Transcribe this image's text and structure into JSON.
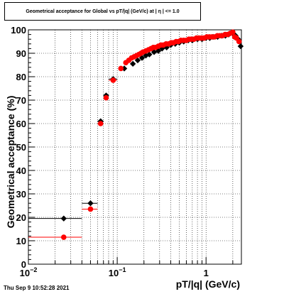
{
  "title": "Geometrical acceptance for Global vs pT/|q| (GeV/c) at |  η | <= 1.0",
  "timestamp": "Thu Sep  9 10:52:28 2021",
  "chart_data": {
    "type": "scatter",
    "xlabel": "pT/|q| (GeV/c)",
    "ylabel": "Geometrical acceptance (%)",
    "xscale": "log",
    "xlim": [
      0.01,
      2.5
    ],
    "ylim": [
      0,
      100
    ],
    "grid": true,
    "x_ticks": [
      {
        "value": 0.01,
        "base": "10",
        "exp": "−2"
      },
      {
        "value": 0.1,
        "base": "10",
        "exp": "−1"
      },
      {
        "value": 1,
        "base": "1",
        "exp": ""
      }
    ],
    "y_ticks": [
      0,
      10,
      20,
      30,
      40,
      50,
      60,
      70,
      80,
      90,
      100
    ],
    "series": [
      {
        "color": "#000000",
        "marker": "diamond",
        "points": [
          {
            "x": 0.025,
            "y": 19.5,
            "xerr": [
              0.01,
              0.04
            ],
            "yerr": 0.3
          },
          {
            "x": 0.05,
            "y": 26,
            "xerr": [
              0.04,
              0.06
            ],
            "yerr": 0.6
          },
          {
            "x": 0.065,
            "y": 61,
            "xerr": [
              0.06,
              0.07
            ],
            "yerr": 1.0
          },
          {
            "x": 0.075,
            "y": 72,
            "xerr": [
              0.07,
              0.08
            ],
            "yerr": 1.0
          },
          {
            "x": 0.09,
            "y": 79,
            "xerr": [
              0.08,
              0.1
            ],
            "yerr": 0.5
          },
          {
            "x": 0.12,
            "y": 83.5
          },
          {
            "x": 0.15,
            "y": 85.5
          },
          {
            "x": 0.17,
            "y": 87
          },
          {
            "x": 0.19,
            "y": 88
          },
          {
            "x": 0.21,
            "y": 89
          },
          {
            "x": 0.23,
            "y": 89.5
          },
          {
            "x": 0.26,
            "y": 90.5
          },
          {
            "x": 0.29,
            "y": 91
          },
          {
            "x": 0.32,
            "y": 92
          },
          {
            "x": 0.36,
            "y": 92.5
          },
          {
            "x": 0.4,
            "y": 93.5
          },
          {
            "x": 0.45,
            "y": 94
          },
          {
            "x": 0.5,
            "y": 94.5
          },
          {
            "x": 0.56,
            "y": 95
          },
          {
            "x": 0.63,
            "y": 95.5
          },
          {
            "x": 0.7,
            "y": 95.5
          },
          {
            "x": 0.8,
            "y": 96
          },
          {
            "x": 0.9,
            "y": 96
          },
          {
            "x": 1.0,
            "y": 96.5
          },
          {
            "x": 1.1,
            "y": 96.5
          },
          {
            "x": 1.2,
            "y": 97
          },
          {
            "x": 1.35,
            "y": 97
          },
          {
            "x": 1.5,
            "y": 97.5
          },
          {
            "x": 1.65,
            "y": 97.5
          },
          {
            "x": 1.8,
            "y": 98
          },
          {
            "x": 2.0,
            "y": 98.5
          },
          {
            "x": 2.15,
            "y": 97.5
          },
          {
            "x": 2.3,
            "y": 96
          },
          {
            "x": 2.45,
            "y": 93
          }
        ]
      },
      {
        "color": "#ff0000",
        "marker": "circle",
        "points": [
          {
            "x": 0.025,
            "y": 11.5,
            "xerr": [
              0.01,
              0.04
            ],
            "yerr": 0.3
          },
          {
            "x": 0.05,
            "y": 23.5,
            "xerr": [
              0.04,
              0.06
            ],
            "yerr": 0.6
          },
          {
            "x": 0.065,
            "y": 60,
            "xerr": [
              0.06,
              0.07
            ],
            "yerr": 1.0
          },
          {
            "x": 0.075,
            "y": 71,
            "xerr": [
              0.07,
              0.08
            ],
            "yerr": 1.0
          },
          {
            "x": 0.09,
            "y": 78.5,
            "xerr": [
              0.08,
              0.1
            ],
            "yerr": 0.5
          },
          {
            "x": 0.11,
            "y": 83.5
          },
          {
            "x": 0.125,
            "y": 86
          },
          {
            "x": 0.135,
            "y": 87
          },
          {
            "x": 0.145,
            "y": 88
          },
          {
            "x": 0.155,
            "y": 88.5
          },
          {
            "x": 0.165,
            "y": 89
          },
          {
            "x": 0.175,
            "y": 89.5
          },
          {
            "x": 0.185,
            "y": 90
          },
          {
            "x": 0.195,
            "y": 90.5
          },
          {
            "x": 0.21,
            "y": 91
          },
          {
            "x": 0.225,
            "y": 91.5
          },
          {
            "x": 0.24,
            "y": 92
          },
          {
            "x": 0.255,
            "y": 92.5
          },
          {
            "x": 0.27,
            "y": 92.5
          },
          {
            "x": 0.29,
            "y": 93
          },
          {
            "x": 0.31,
            "y": 93.5
          },
          {
            "x": 0.33,
            "y": 93.5
          },
          {
            "x": 0.355,
            "y": 94
          },
          {
            "x": 0.38,
            "y": 94
          },
          {
            "x": 0.405,
            "y": 94.5
          },
          {
            "x": 0.43,
            "y": 94.5
          },
          {
            "x": 0.46,
            "y": 95
          },
          {
            "x": 0.49,
            "y": 95
          },
          {
            "x": 0.52,
            "y": 95.5
          },
          {
            "x": 0.56,
            "y": 95.5
          },
          {
            "x": 0.6,
            "y": 95.5
          },
          {
            "x": 0.64,
            "y": 96
          },
          {
            "x": 0.68,
            "y": 96
          },
          {
            "x": 0.73,
            "y": 96
          },
          {
            "x": 0.78,
            "y": 96.5
          },
          {
            "x": 0.83,
            "y": 96.5
          },
          {
            "x": 0.89,
            "y": 96.5
          },
          {
            "x": 0.95,
            "y": 96.5
          },
          {
            "x": 1.02,
            "y": 97
          },
          {
            "x": 1.09,
            "y": 97
          },
          {
            "x": 1.17,
            "y": 97
          },
          {
            "x": 1.25,
            "y": 97
          },
          {
            "x": 1.34,
            "y": 97.5
          },
          {
            "x": 1.43,
            "y": 97.5
          },
          {
            "x": 1.53,
            "y": 97.5
          },
          {
            "x": 1.64,
            "y": 98
          },
          {
            "x": 1.75,
            "y": 98
          },
          {
            "x": 1.87,
            "y": 98.5
          },
          {
            "x": 2.0,
            "y": 99
          },
          {
            "x": 2.1,
            "y": 97
          },
          {
            "x": 2.2,
            "y": 96.5
          },
          {
            "x": 2.35,
            "y": 95
          }
        ]
      }
    ]
  }
}
